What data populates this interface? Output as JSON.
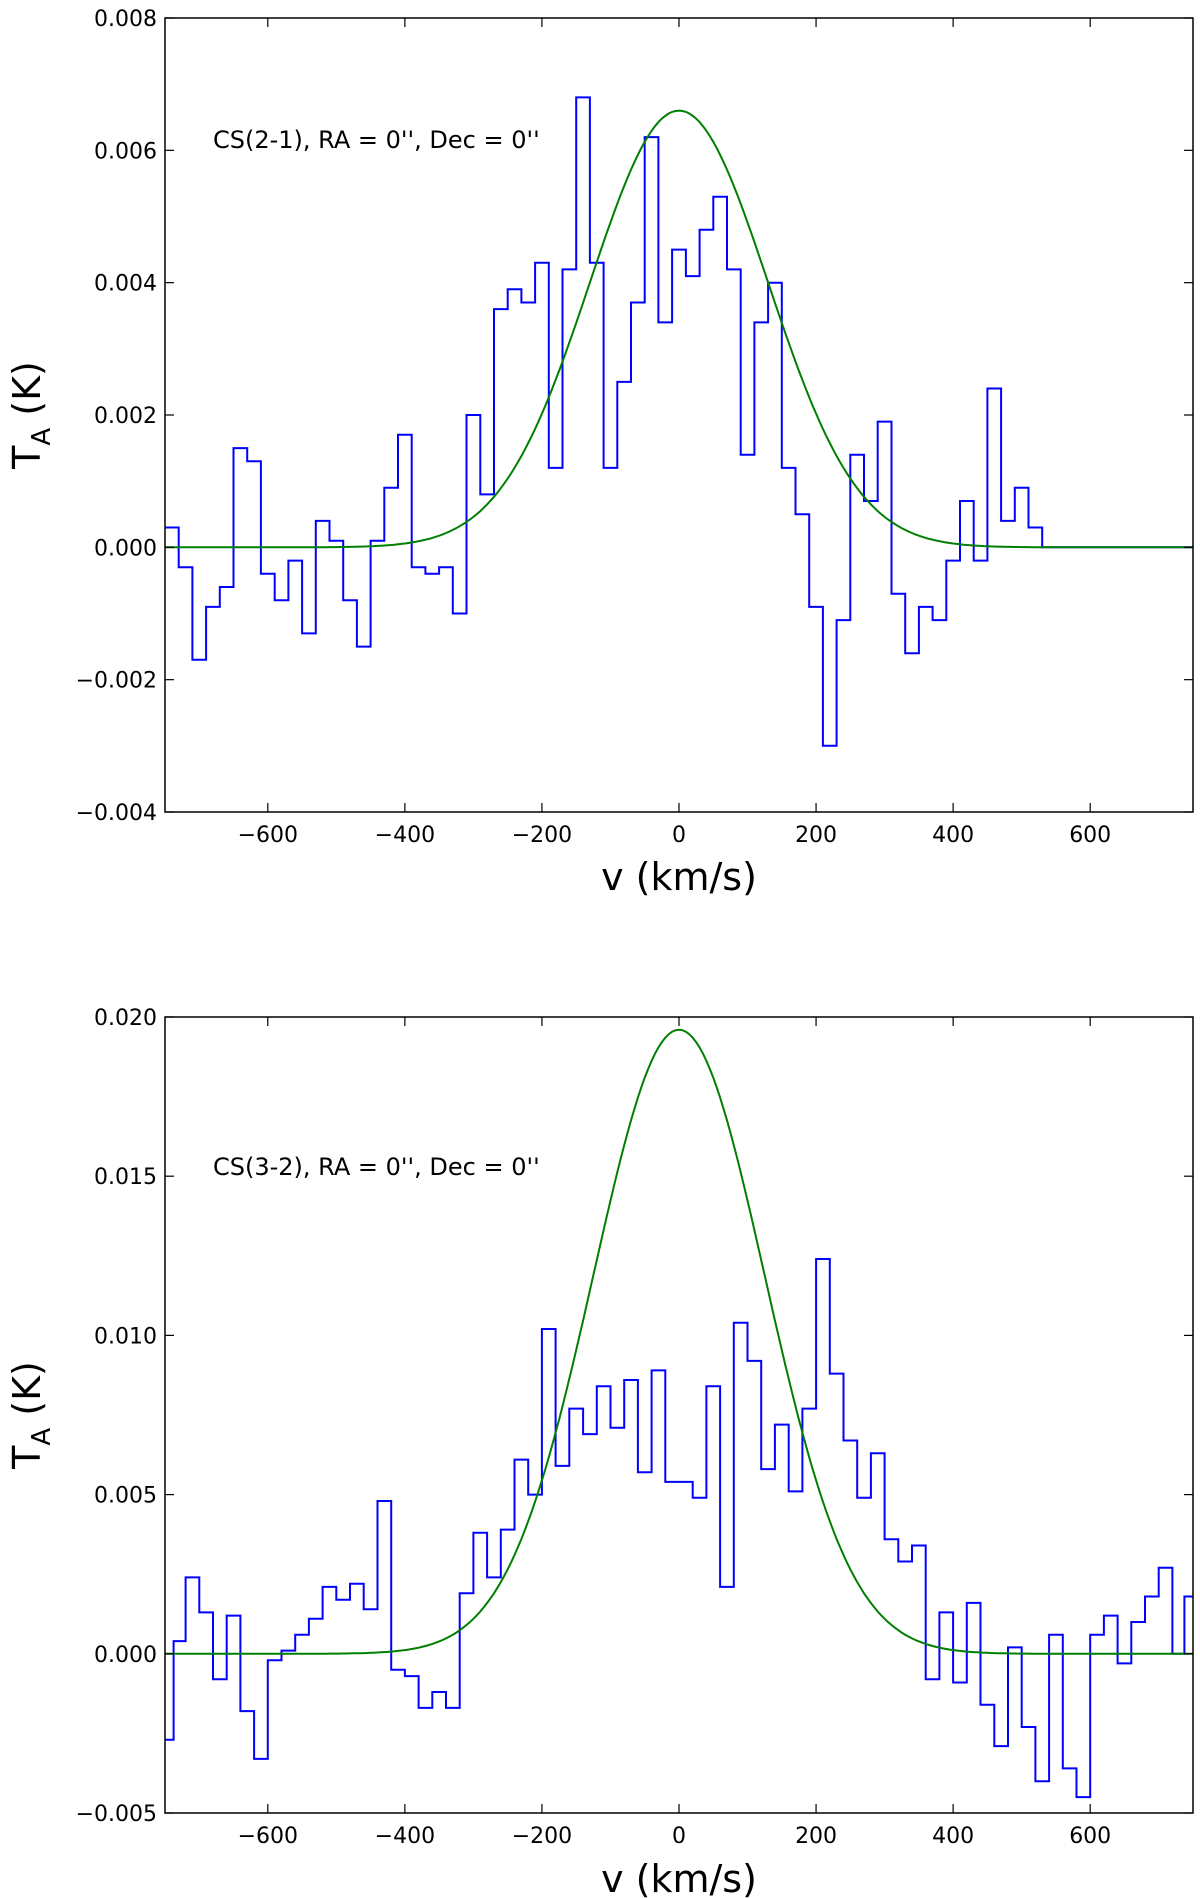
{
  "chart_data": [
    {
      "type": "line",
      "annotation": "CS(2-1), RA = 0'', Dec = 0''",
      "xlabel": "v (km/s)",
      "ylabel_main": "T",
      "ylabel_sub": "A",
      "ylabel_unit": " (K)",
      "xlim": [
        -750,
        750
      ],
      "ylim": [
        -0.004,
        0.008
      ],
      "xticks": [
        -600,
        -400,
        -200,
        0,
        200,
        400,
        600
      ],
      "xtick_labels": [
        "−600",
        "−400",
        "−200",
        "0",
        "200",
        "400",
        "600"
      ],
      "yticks": [
        -0.004,
        -0.002,
        0.0,
        0.002,
        0.004,
        0.006,
        0.008
      ],
      "ytick_labels": [
        "−0.004",
        "−0.002",
        "0.000",
        "0.002",
        "0.004",
        "0.006",
        "0.008"
      ],
      "grid": false,
      "series": [
        {
          "style": "steps",
          "color": "#0000ff",
          "x": [
            -740,
            -720,
            -700,
            -680,
            -660,
            -640,
            -620,
            -600,
            -580,
            -560,
            -540,
            -520,
            -500,
            -480,
            -460,
            -440,
            -420,
            -400,
            -380,
            -360,
            -340,
            -320,
            -300,
            -280,
            -260,
            -240,
            -220,
            -200,
            -180,
            -160,
            -140,
            -120,
            -100,
            -80,
            -60,
            -40,
            -20,
            0,
            20,
            40,
            60,
            80,
            100,
            120,
            140,
            160,
            180,
            200,
            220,
            240,
            260,
            280,
            300,
            320,
            340,
            360,
            380,
            400,
            420,
            440,
            460,
            480,
            500,
            520,
            540,
            560,
            580,
            600,
            620,
            640,
            660,
            680,
            700,
            720,
            740
          ],
          "y": [
            0.0003,
            -0.0003,
            -0.0017,
            -0.0009,
            -0.0006,
            0.0015,
            0.0013,
            -0.0004,
            -0.0008,
            -0.0002,
            -0.0013,
            0.0004,
            0.0001,
            -0.0008,
            -0.0015,
            0.0001,
            0.0009,
            0.0017,
            -0.0003,
            -0.0004,
            -0.0003,
            -0.001,
            0.002,
            0.0008,
            0.0036,
            0.0039,
            0.0037,
            0.0043,
            0.0012,
            0.0042,
            0.0068,
            0.0043,
            0.0012,
            0.0025,
            0.0037,
            0.0062,
            0.0034,
            0.0045,
            0.0041,
            0.0048,
            0.0053,
            0.0042,
            0.0014,
            0.0034,
            0.004,
            0.0012,
            0.0005,
            -0.0009,
            -0.003,
            -0.0011,
            0.0014,
            0.0007,
            0.0019,
            -0.0007,
            -0.0016,
            -0.0009,
            -0.0011,
            -0.0002,
            0.0007,
            -0.0002,
            0.0024,
            0.0004,
            0.0009,
            0.0003,
            0.0,
            0.0,
            0.0,
            0.0,
            0.0,
            0.0,
            0.0,
            0.0,
            0.0,
            0.0,
            0.0
          ]
        },
        {
          "style": "line",
          "color": "#007f00",
          "gaussian": {
            "amplitude": 0.0066,
            "center": 0,
            "sigma": 130
          }
        }
      ]
    },
    {
      "type": "line",
      "annotation": "CS(3-2), RA = 0'', Dec = 0''",
      "xlabel": "v (km/s)",
      "ylabel_main": "T",
      "ylabel_sub": "A",
      "ylabel_unit": " (K)",
      "xlim": [
        -750,
        750
      ],
      "ylim": [
        -0.005,
        0.02
      ],
      "xticks": [
        -600,
        -400,
        -200,
        0,
        200,
        400,
        600
      ],
      "xtick_labels": [
        "−600",
        "−400",
        "−200",
        "0",
        "200",
        "400",
        "600"
      ],
      "yticks": [
        -0.005,
        0.0,
        0.005,
        0.01,
        0.015,
        0.02
      ],
      "ytick_labels": [
        "−0.005",
        "0.000",
        "0.005",
        "0.010",
        "0.015",
        "0.020"
      ],
      "grid": false,
      "series": [
        {
          "style": "steps",
          "color": "#0000ff",
          "x": [
            -745,
            -730,
            -710,
            -690,
            -670,
            -650,
            -630,
            -610,
            -590,
            -570,
            -550,
            -530,
            -510,
            -490,
            -470,
            -450,
            -430,
            -410,
            -390,
            -370,
            -350,
            -330,
            -310,
            -290,
            -270,
            -250,
            -230,
            -210,
            -190,
            -170,
            -150,
            -130,
            -110,
            -90,
            -70,
            -50,
            -30,
            -10,
            10,
            30,
            50,
            70,
            90,
            110,
            130,
            150,
            170,
            190,
            210,
            230,
            250,
            270,
            290,
            310,
            330,
            350,
            370,
            390,
            410,
            430,
            450,
            470,
            490,
            510,
            530,
            550,
            570,
            590,
            610,
            630,
            650,
            670,
            690,
            710,
            730,
            745
          ],
          "y": [
            -0.0027,
            0.0004,
            0.0024,
            0.0013,
            -0.0008,
            0.0012,
            -0.0018,
            -0.0033,
            -0.0002,
            0.0001,
            0.0006,
            0.0011,
            0.0021,
            0.0017,
            0.0022,
            0.0014,
            0.0048,
            -0.0005,
            -0.0007,
            -0.0017,
            -0.0012,
            -0.0017,
            0.0019,
            0.0038,
            0.0024,
            0.0039,
            0.0061,
            0.005,
            0.0102,
            0.0059,
            0.0077,
            0.0069,
            0.0084,
            0.0071,
            0.0086,
            0.0057,
            0.0089,
            0.0054,
            0.0054,
            0.0049,
            0.0084,
            0.0021,
            0.0104,
            0.0092,
            0.0058,
            0.0072,
            0.0051,
            0.0077,
            0.0124,
            0.0088,
            0.0067,
            0.0049,
            0.0063,
            0.0036,
            0.0029,
            0.0034,
            -0.0008,
            0.0013,
            -0.0009,
            0.0016,
            -0.0016,
            -0.0029,
            0.0002,
            -0.0023,
            -0.004,
            0.0006,
            -0.0036,
            -0.0045,
            0.0006,
            0.0012,
            -0.0003,
            0.001,
            0.0018,
            0.0027,
            0.0,
            0.0018
          ],
          "y_note": "reconstructed"
        },
        {
          "style": "line",
          "color": "#007f00",
          "gaussian": {
            "amplitude": 0.0196,
            "center": 0,
            "sigma": 125
          }
        }
      ]
    }
  ]
}
